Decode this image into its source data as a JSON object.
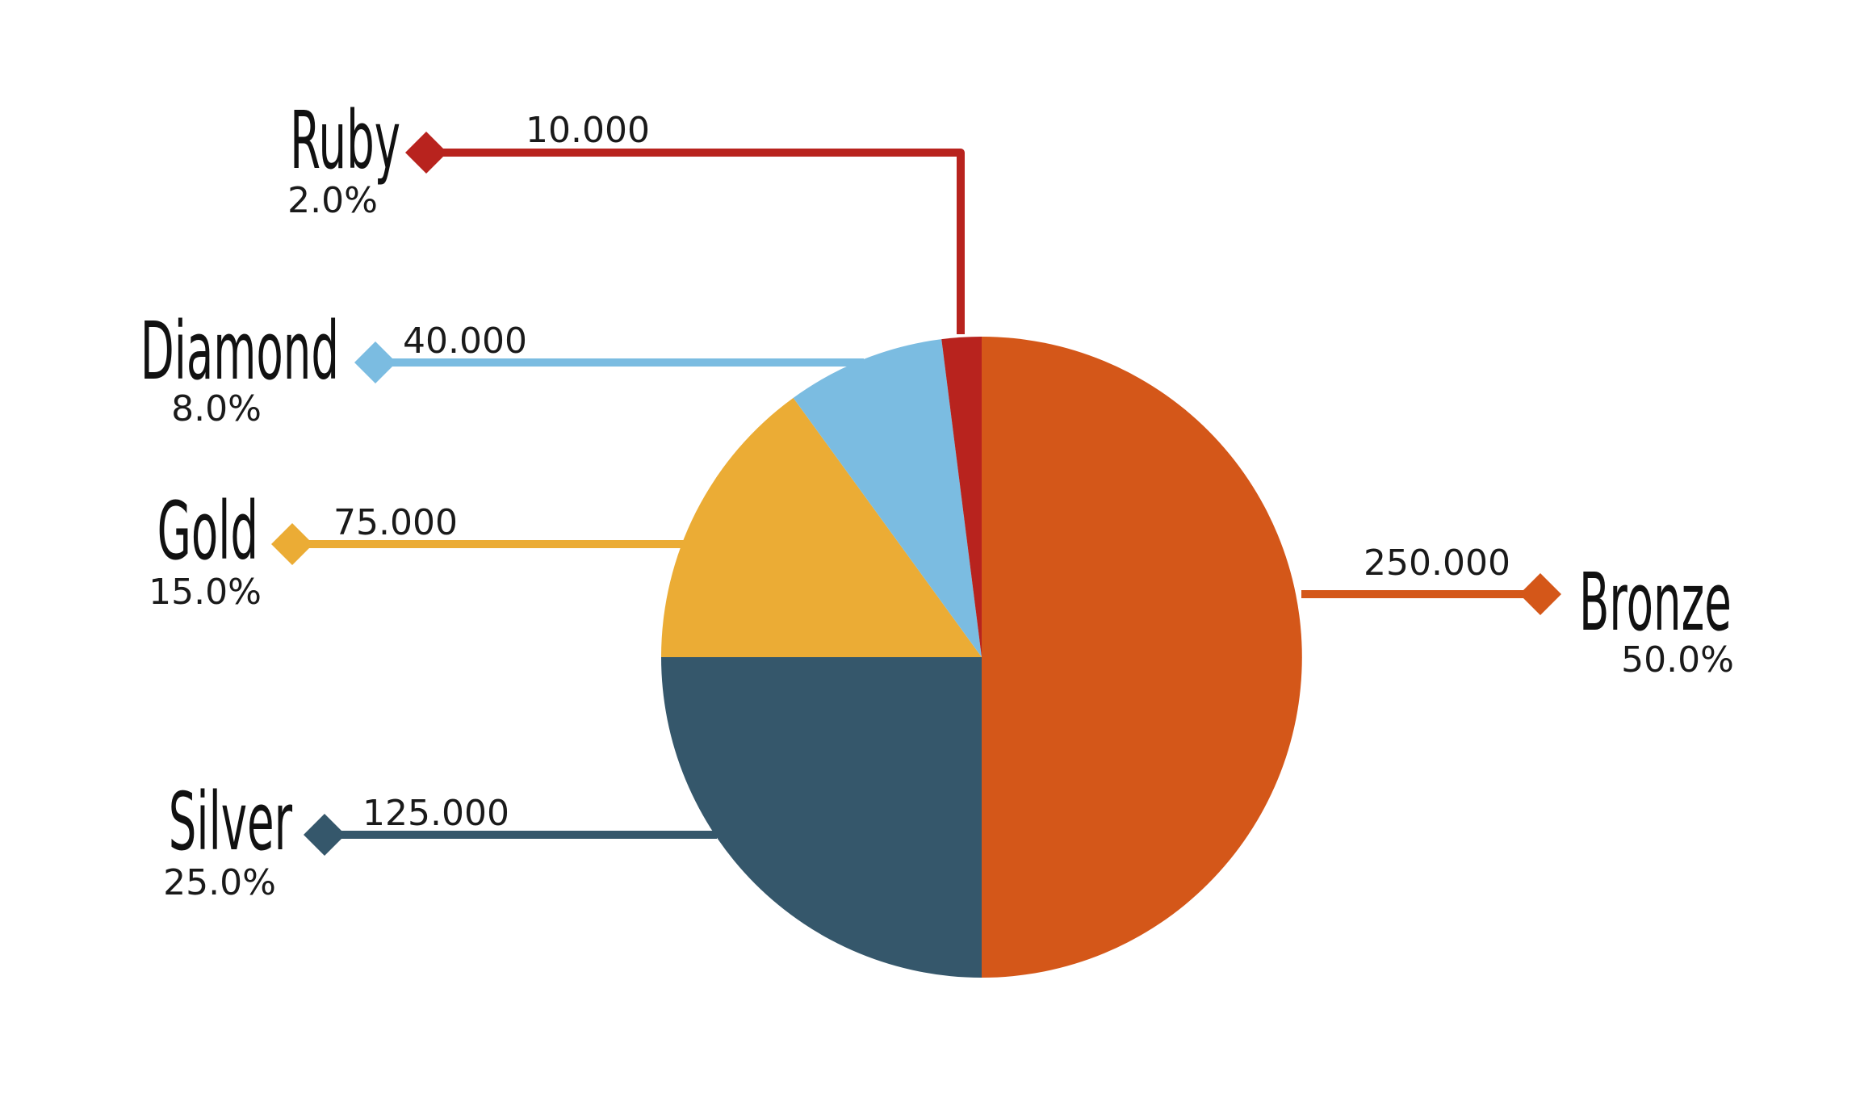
{
  "chart_data": {
    "type": "pie",
    "title": "",
    "start_angle_deg": 0,
    "direction": "clockwise",
    "slices": [
      {
        "name": "Bronze",
        "value": 250000,
        "value_label": "250.000",
        "percent_label": "50.0%",
        "color": "#D45719"
      },
      {
        "name": "Silver",
        "value": 125000,
        "value_label": "125.000",
        "percent_label": "25.0%",
        "color": "#35576B"
      },
      {
        "name": "Gold",
        "value": 75000,
        "value_label": "75.000",
        "percent_label": "15.0%",
        "color": "#EBAC35"
      },
      {
        "name": "Diamond",
        "value": 40000,
        "value_label": "40.000",
        "percent_label": "8.0%",
        "color": "#7BBCE1"
      },
      {
        "name": "Ruby",
        "value": 10000,
        "value_label": "10.000",
        "percent_label": "2.0%",
        "color": "#B8231E"
      }
    ]
  }
}
